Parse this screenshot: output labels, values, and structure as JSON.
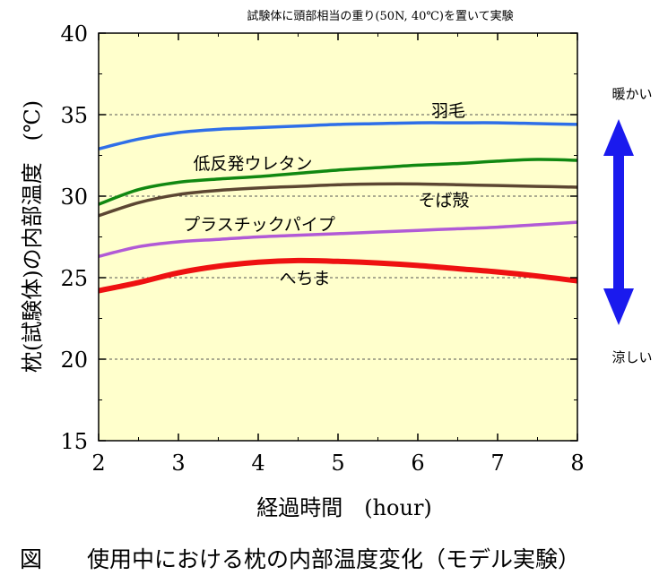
{
  "chart_data": {
    "type": "line",
    "title": "試験体に頭部相当の重り(50N, 40℃)を置いて実験",
    "caption": "図　　使用中における枕の内部温度変化（モデル実験）",
    "xlabel": "経過時間　(hour)",
    "ylabel": "枕(試験体)の内部温度　(℃)",
    "xlim": [
      2,
      8
    ],
    "ylim": [
      15,
      40
    ],
    "x_ticks": [
      2,
      3,
      4,
      5,
      6,
      7,
      8
    ],
    "y_ticks": [
      15,
      20,
      25,
      30,
      35,
      40
    ],
    "dashed_gridlines_y": [
      20,
      25,
      30,
      35
    ],
    "plot_background": "#ffffcc",
    "series": [
      {
        "name": "羽毛",
        "color": "#2f6fe8",
        "x": [
          2,
          2.5,
          3,
          3.5,
          4,
          4.5,
          5,
          5.5,
          6,
          6.5,
          7,
          7.5,
          8
        ],
        "values": [
          32.9,
          33.5,
          33.9,
          34.1,
          34.2,
          34.3,
          34.4,
          34.45,
          34.5,
          34.5,
          34.5,
          34.45,
          34.4
        ]
      },
      {
        "name": "低反発ウレタン",
        "color": "#118811",
        "x": [
          2,
          2.5,
          3,
          3.5,
          4,
          4.5,
          5,
          5.5,
          6,
          6.5,
          7,
          7.5,
          8
        ],
        "values": [
          29.5,
          30.4,
          30.85,
          31.05,
          31.2,
          31.4,
          31.6,
          31.75,
          31.9,
          32.0,
          32.15,
          32.25,
          32.2
        ]
      },
      {
        "name": "そば殻",
        "color": "#5c4632",
        "x": [
          2,
          2.5,
          3,
          3.5,
          4,
          4.5,
          5,
          5.5,
          6,
          6.5,
          7,
          7.5,
          8
        ],
        "values": [
          28.8,
          29.6,
          30.1,
          30.35,
          30.5,
          30.6,
          30.7,
          30.75,
          30.75,
          30.7,
          30.65,
          30.6,
          30.55
        ]
      },
      {
        "name": "プラスチックパイプ",
        "color": "#b15ad6",
        "x": [
          2,
          2.5,
          3,
          3.5,
          4,
          4.5,
          5,
          5.5,
          6,
          6.5,
          7,
          7.5,
          8
        ],
        "values": [
          26.3,
          26.9,
          27.2,
          27.35,
          27.5,
          27.6,
          27.7,
          27.8,
          27.9,
          28.0,
          28.1,
          28.25,
          28.4
        ]
      },
      {
        "name": "へちま",
        "color": "#ee1111",
        "x": [
          2,
          2.5,
          3,
          3.5,
          4,
          4.5,
          5,
          5.5,
          6,
          6.5,
          7,
          7.5,
          8
        ],
        "values": [
          24.2,
          24.7,
          25.3,
          25.7,
          25.95,
          26.05,
          26.0,
          25.9,
          25.75,
          25.55,
          25.35,
          25.1,
          24.8
        ]
      }
    ],
    "annotations": {
      "warm_label": "暖かい",
      "cool_label": "涼しい",
      "arrow_color": "#1a1aee"
    }
  }
}
